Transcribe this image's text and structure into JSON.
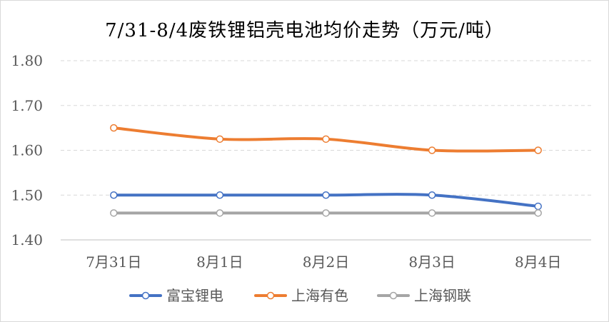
{
  "chart_data": {
    "type": "line",
    "title": "7/31-8/4废铁锂铝壳电池均价走势（万元/吨）",
    "categories": [
      "7月31日",
      "8月1日",
      "8月2日",
      "8月3日",
      "8月4日"
    ],
    "ylim": [
      1.4,
      1.8
    ],
    "yticks": [
      "1.40",
      "1.50",
      "1.60",
      "1.70",
      "1.80"
    ],
    "grid": true,
    "legend_position": "bottom",
    "series": [
      {
        "name": "富宝锂电",
        "values": [
          1.5,
          1.5,
          1.5,
          1.5,
          1.475
        ],
        "color": "#4472C4"
      },
      {
        "name": "上海有色",
        "values": [
          1.65,
          1.625,
          1.625,
          1.6,
          1.6
        ],
        "color": "#ED7D31"
      },
      {
        "name": "上海钢联",
        "values": [
          1.46,
          1.46,
          1.46,
          1.46,
          1.46
        ],
        "color": "#A5A5A5"
      }
    ]
  }
}
